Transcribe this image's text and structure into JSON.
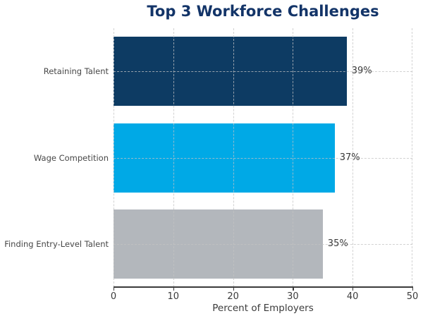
{
  "chart_data": {
    "type": "bar",
    "orientation": "horizontal",
    "title": "Top 3 Workforce Challenges",
    "categories": [
      "Retaining Talent",
      "Wage Competition",
      "Finding Entry-Level Talent"
    ],
    "values": [
      39,
      37,
      35
    ],
    "value_labels": [
      "39%",
      "37%",
      "35%"
    ],
    "bar_colors": [
      "#0D3B63",
      "#00A9E6",
      "#B3B7BC"
    ],
    "xlabel": "Percent of Employers",
    "xlim": [
      0,
      50
    ],
    "xticks": [
      0,
      10,
      20,
      30,
      40,
      50
    ],
    "xtick_labels": [
      "0",
      "10",
      "20",
      "30",
      "40",
      "50"
    ],
    "grid": "dashed",
    "legend": "none",
    "colors": {
      "title": "#133468",
      "axis_text": "#3B3B3B",
      "category_text": "#474747",
      "value_text": "#3A3A3A",
      "grid": "#C3C3C3",
      "spine": "#3B3B3B",
      "background": "#FFFFFF"
    }
  }
}
